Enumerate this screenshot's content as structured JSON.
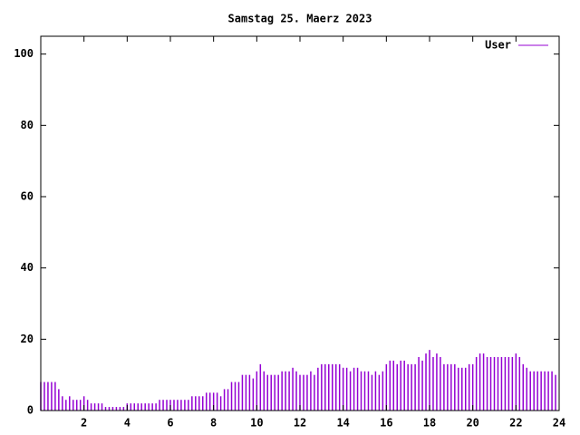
{
  "chart_data": {
    "type": "impulse",
    "title": "Samstag 25. Maerz 2023",
    "xlim": [
      0,
      24
    ],
    "xticks": [
      2,
      4,
      6,
      8,
      10,
      12,
      14,
      16,
      18,
      20,
      22,
      24
    ],
    "ylim": [
      0,
      105
    ],
    "yticks": [
      0,
      20,
      40,
      60,
      80,
      100
    ],
    "legend": "top-right",
    "x": [
      0,
      0.167,
      0.333,
      0.5,
      0.667,
      0.833,
      1,
      1.167,
      1.333,
      1.5,
      1.667,
      1.833,
      2,
      2.167,
      2.333,
      2.5,
      2.667,
      2.833,
      3,
      3.167,
      3.333,
      3.5,
      3.667,
      3.833,
      4,
      4.167,
      4.333,
      4.5,
      4.667,
      4.833,
      5,
      5.167,
      5.333,
      5.5,
      5.667,
      5.833,
      6,
      6.167,
      6.333,
      6.5,
      6.667,
      6.833,
      7,
      7.167,
      7.333,
      7.5,
      7.667,
      7.833,
      8,
      8.167,
      8.333,
      8.5,
      8.667,
      8.833,
      9,
      9.167,
      9.333,
      9.5,
      9.667,
      9.833,
      10,
      10.167,
      10.333,
      10.5,
      10.667,
      10.833,
      11,
      11.167,
      11.333,
      11.5,
      11.667,
      11.833,
      12,
      12.167,
      12.333,
      12.5,
      12.667,
      12.833,
      13,
      13.167,
      13.333,
      13.5,
      13.667,
      13.833,
      14,
      14.167,
      14.333,
      14.5,
      14.667,
      14.833,
      15,
      15.167,
      15.333,
      15.5,
      15.667,
      15.833,
      16,
      16.167,
      16.333,
      16.5,
      16.667,
      16.833,
      17,
      17.167,
      17.333,
      17.5,
      17.667,
      17.833,
      18,
      18.167,
      18.333,
      18.5,
      18.667,
      18.833,
      19,
      19.167,
      19.333,
      19.5,
      19.667,
      19.833,
      20,
      20.167,
      20.333,
      20.5,
      20.667,
      20.833,
      21,
      21.167,
      21.333,
      21.5,
      21.667,
      21.833,
      22,
      22.167,
      22.333,
      22.5,
      22.667,
      22.833,
      23,
      23.167,
      23.333,
      23.5,
      23.667,
      23.833
    ],
    "series": [
      {
        "name": "User",
        "color": "#9400d3",
        "values": [
          8,
          8,
          8,
          8,
          8,
          6,
          4,
          3,
          4,
          3,
          3,
          3,
          4,
          3,
          2,
          2,
          2,
          2,
          1,
          1,
          1,
          1,
          1,
          1,
          2,
          2,
          2,
          2,
          2,
          2,
          2,
          2,
          2,
          3,
          3,
          3,
          3,
          3,
          3,
          3,
          3,
          3,
          4,
          4,
          4,
          4,
          5,
          5,
          5,
          5,
          4,
          6,
          6,
          8,
          8,
          8,
          10,
          10,
          10,
          9,
          11,
          13,
          11,
          10,
          10,
          10,
          10,
          11,
          11,
          11,
          12,
          11,
          10,
          10,
          10,
          11,
          10,
          12,
          13,
          13,
          13,
          13,
          13,
          13,
          12,
          12,
          11,
          12,
          12,
          11,
          11,
          11,
          10,
          11,
          10,
          11,
          13,
          14,
          14,
          13,
          14,
          14,
          13,
          13,
          13,
          15,
          14,
          16,
          17,
          15,
          16,
          15,
          13,
          13,
          13,
          13,
          12,
          12,
          12,
          13,
          13,
          15,
          16,
          16,
          15,
          15,
          15,
          15,
          15,
          15,
          15,
          15,
          16,
          15,
          13,
          12,
          11,
          11,
          11,
          11,
          11,
          11,
          11,
          10
        ]
      }
    ]
  }
}
